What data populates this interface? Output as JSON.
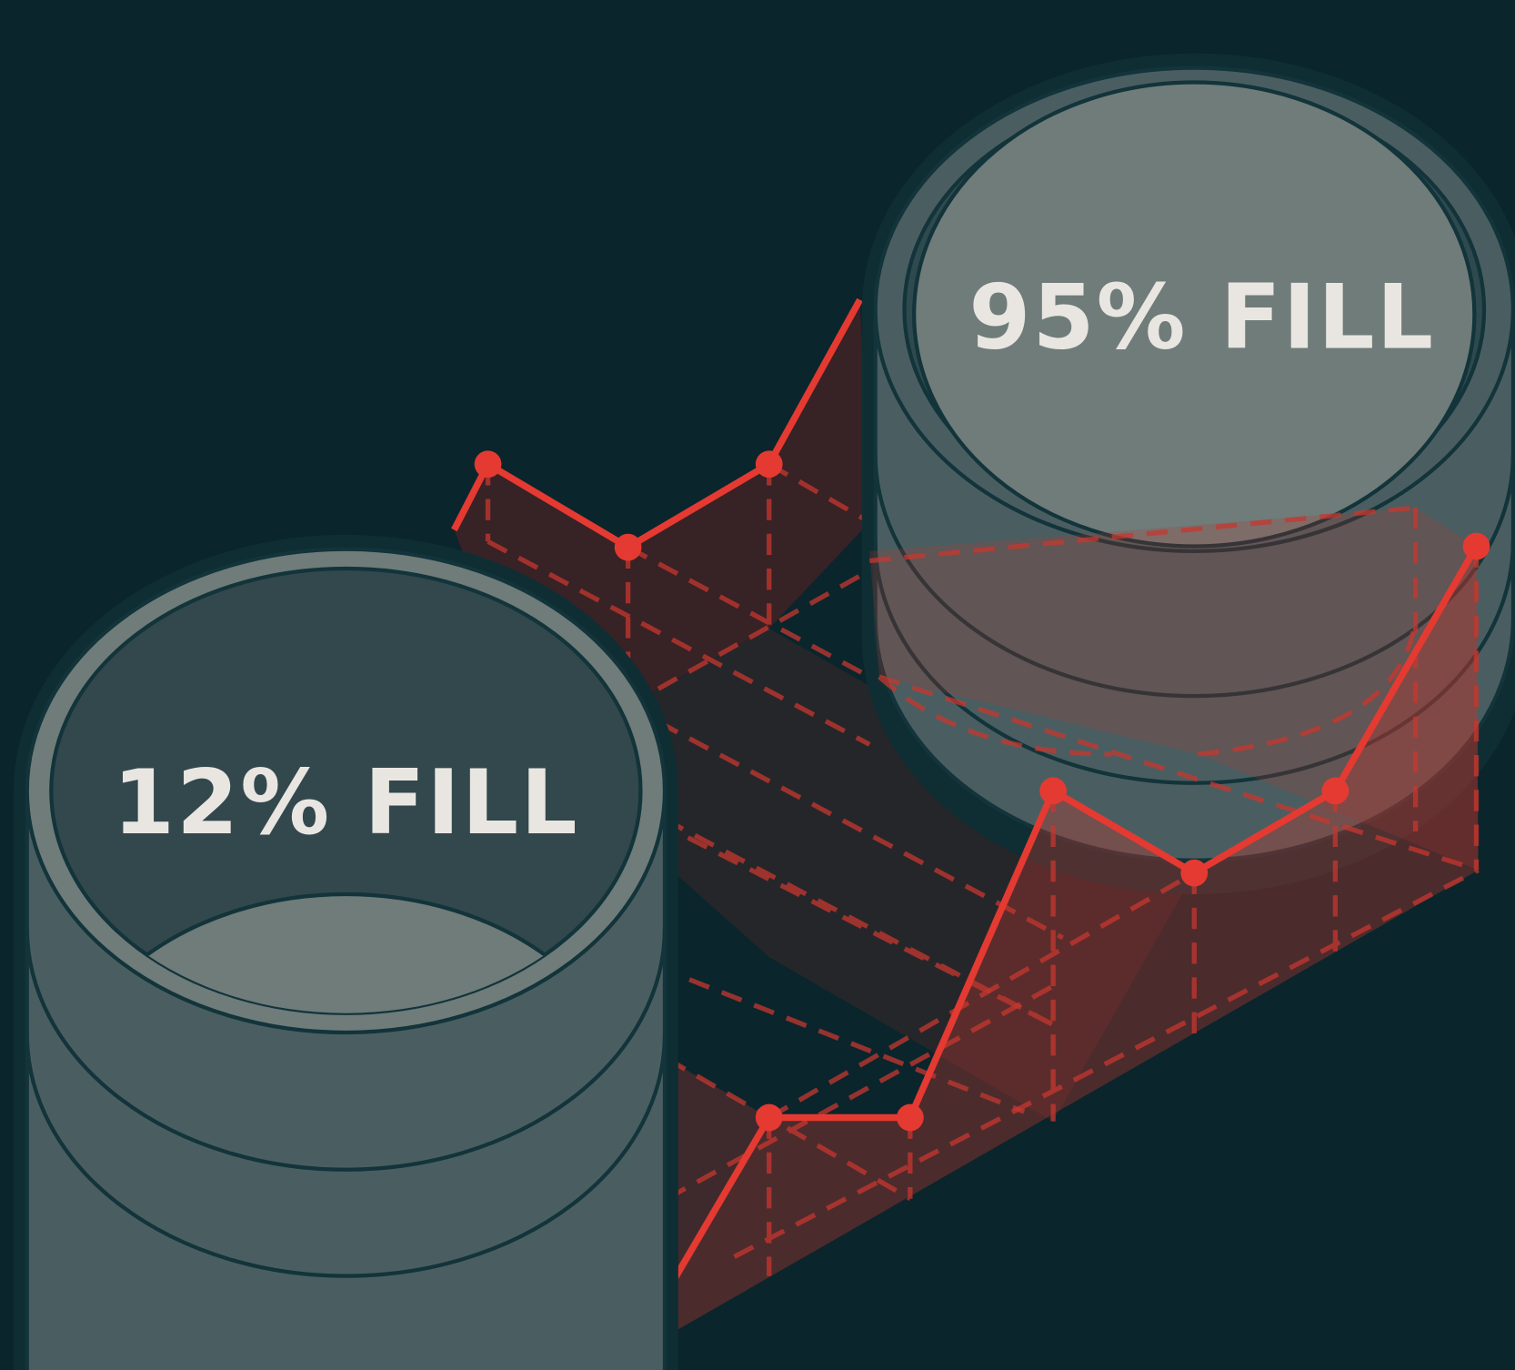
{
  "cylinders": [
    {
      "label": "12% FILL"
    },
    {
      "label": "95% FILL"
    }
  ]
}
